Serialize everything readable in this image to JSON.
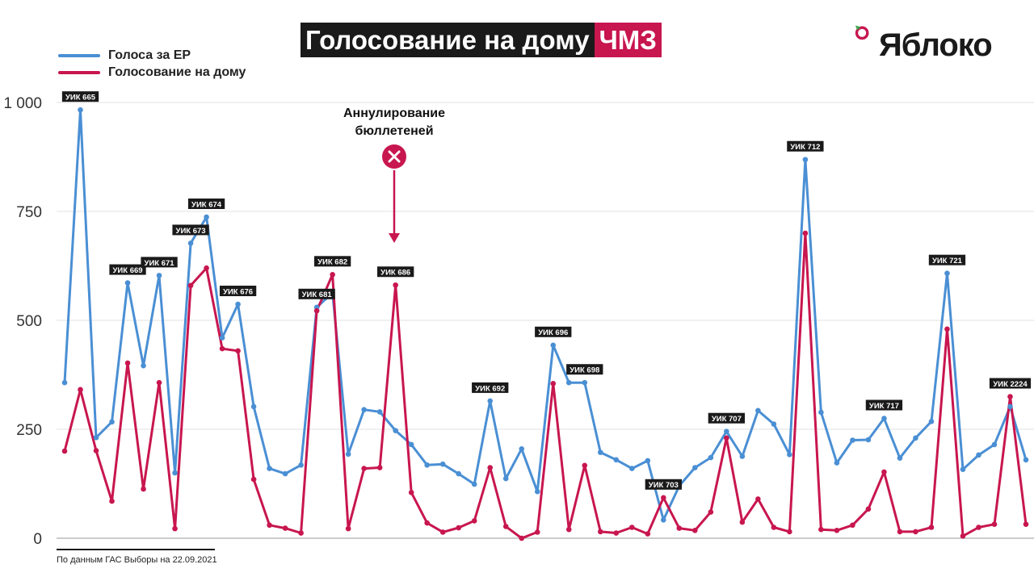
{
  "header": {
    "title_main": "Голосование на дому",
    "title_accent": "ЧМЗ"
  },
  "logo": {
    "text": "Яблоко",
    "icon": "apple-ring-icon"
  },
  "footnote": "По данным ГАС Выборы на 22.09.2021",
  "colors": {
    "er": "#4a8fd4",
    "home": "#c8164f",
    "title_bg": "#1a1a1a",
    "accent": "#c8164f"
  },
  "chart_data": {
    "type": "line",
    "title": "Голосование на дому ЧМЗ",
    "ylim": [
      0,
      1000
    ],
    "yticks": [
      0,
      250,
      500,
      750,
      1000
    ],
    "ytick_labels": [
      "0",
      "250",
      "500",
      "750",
      "1 000"
    ],
    "grid": true,
    "legend": "top-left",
    "series": [
      {
        "name": "Голоса за ЕР",
        "color": "#4a8fd4",
        "values": [
          357,
          983,
          231,
          267,
          586,
          396,
          603,
          150,
          677,
          737,
          460,
          537,
          302,
          160,
          148,
          168,
          530,
          563,
          193,
          295,
          290,
          247,
          215,
          168,
          170,
          148,
          124,
          315,
          137,
          205,
          107,
          443,
          357,
          357,
          197,
          180,
          160,
          178,
          42,
          120,
          162,
          185,
          245,
          188,
          293,
          262,
          192,
          869,
          289,
          173,
          225,
          226,
          275,
          184,
          230,
          268,
          608,
          158,
          191,
          215,
          302,
          180
        ]
      },
      {
        "name": "Голосование на дому",
        "color": "#c8164f",
        "values": [
          200,
          341,
          201,
          85,
          402,
          113,
          357,
          22,
          580,
          620,
          435,
          430,
          135,
          30,
          23,
          12,
          522,
          605,
          22,
          160,
          162,
          581,
          105,
          35,
          14,
          24,
          40,
          162,
          27,
          0,
          14,
          355,
          20,
          167,
          15,
          12,
          25,
          10,
          93,
          23,
          18,
          60,
          230,
          37,
          90,
          25,
          15,
          700,
          20,
          18,
          30,
          67,
          152,
          15,
          15,
          25,
          480,
          5,
          25,
          32,
          325,
          32
        ]
      }
    ],
    "point_labels": [
      {
        "index": 1,
        "text": "УИК 665"
      },
      {
        "index": 4,
        "text": "УИК 669"
      },
      {
        "index": 6,
        "text": "УИК 671"
      },
      {
        "index": 8,
        "text": "УИК 673"
      },
      {
        "index": 9,
        "text": "УИК 674"
      },
      {
        "index": 11,
        "text": "УИК 676"
      },
      {
        "index": 16,
        "text": "УИК 681"
      },
      {
        "index": 17,
        "text": "УИК 682"
      },
      {
        "index": 21,
        "text": "УИК 686"
      },
      {
        "index": 27,
        "text": "УИК 692"
      },
      {
        "index": 31,
        "text": "УИК 696"
      },
      {
        "index": 33,
        "text": "УИК 698"
      },
      {
        "index": 38,
        "text": "УИК 703"
      },
      {
        "index": 42,
        "text": "УИК 707"
      },
      {
        "index": 47,
        "text": "УИК 712"
      },
      {
        "index": 52,
        "text": "УИК 717"
      },
      {
        "index": 56,
        "text": "УИК 721"
      },
      {
        "index": 60,
        "text": "УИК 2224"
      }
    ],
    "annotation": {
      "line1": "Аннулирование",
      "line2": "бюллетеней",
      "icon": "cross-circle-icon",
      "target_index": 21
    }
  }
}
